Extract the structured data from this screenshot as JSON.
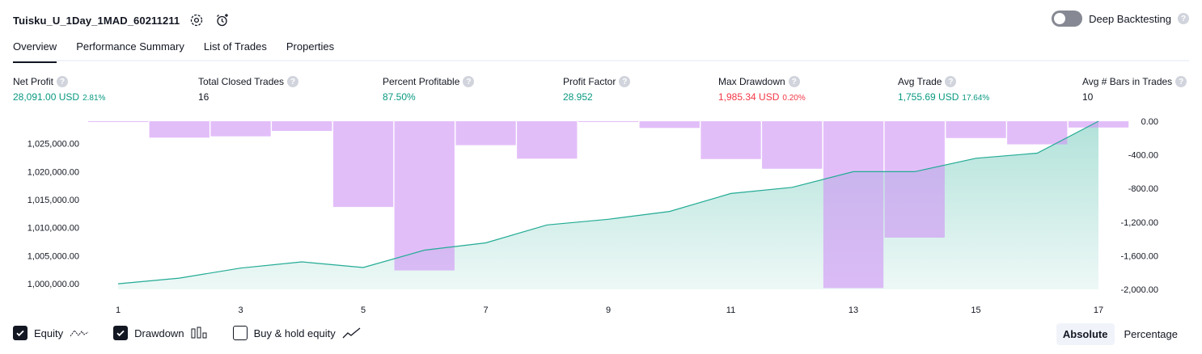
{
  "header": {
    "title": "Tuisku_U_1Day_1MAD_60211211",
    "deep_backtesting_label": "Deep Backtesting",
    "help_glyph": "?"
  },
  "tabs": [
    {
      "label": "Overview",
      "active": true
    },
    {
      "label": "Performance Summary",
      "active": false
    },
    {
      "label": "List of Trades",
      "active": false
    },
    {
      "label": "Properties",
      "active": false
    }
  ],
  "metrics": [
    {
      "label": "Net Profit",
      "value": "28,091.00 USD",
      "pct": "2.81%",
      "color": "#089981"
    },
    {
      "label": "Total Closed Trades",
      "value": "16",
      "pct": "",
      "color": "#131722"
    },
    {
      "label": "Percent Profitable",
      "value": "87.50%",
      "pct": "",
      "color": "#089981"
    },
    {
      "label": "Profit Factor",
      "value": "28.952",
      "pct": "",
      "color": "#089981"
    },
    {
      "label": "Max Drawdown",
      "value": "1,985.34 USD",
      "pct": "0.20%",
      "color": "#f23645"
    },
    {
      "label": "Avg Trade",
      "value": "1,755.69 USD",
      "pct": "17.64%",
      "color": "#089981"
    },
    {
      "label": "Avg # Bars in Trades",
      "value": "10",
      "pct": "",
      "color": "#131722"
    }
  ],
  "footer": {
    "equity_label": "Equity",
    "drawdown_label": "Drawdown",
    "buyhold_label": "Buy & hold equity",
    "absolute_label": "Absolute",
    "percentage_label": "Percentage"
  },
  "chart_data": {
    "type": "line",
    "x": [
      1,
      2,
      3,
      4,
      5,
      6,
      7,
      8,
      9,
      10,
      11,
      12,
      13,
      14,
      15,
      16,
      17
    ],
    "x_tick_labels": [
      "1",
      "3",
      "5",
      "7",
      "9",
      "11",
      "13",
      "15",
      "17"
    ],
    "y_left_range": [
      999000,
      1029000
    ],
    "y_left_tick_labels": [
      "1,000,000.00",
      "1,005,000.00",
      "1,010,000.00",
      "1,015,000.00",
      "1,020,000.00",
      "1,025,000.00"
    ],
    "y_left_ticks": [
      1000000,
      1005000,
      1010000,
      1015000,
      1020000,
      1025000
    ],
    "y_right_range": [
      -2000,
      0
    ],
    "y_right_tick_labels": [
      "0.00",
      "-400.00",
      "-800.00",
      "-1,200.00",
      "-1,600.00",
      "-2,000.00"
    ],
    "y_right_ticks": [
      0,
      -400,
      -800,
      -1200,
      -1600,
      -2000
    ],
    "series": [
      {
        "type": "area",
        "values": [
          1000000,
          1001000,
          1002800,
          1003900,
          1002900,
          1006000,
          1007300,
          1010500,
          1011500,
          1012900,
          1016100,
          1017200,
          1020000,
          1020000,
          1022400,
          1023300,
          1029000
        ],
        "color": "#22ab94"
      },
      {
        "type": "bar",
        "x": [
          1,
          2,
          3,
          4,
          5,
          6,
          7,
          8,
          9,
          10,
          11,
          12,
          13,
          14,
          15,
          16,
          17
        ],
        "values": [
          -5,
          -195,
          -180,
          -115,
          -1020,
          -1775,
          -285,
          -445,
          -8,
          -80,
          -450,
          -565,
          -1985,
          -1385,
          -200,
          -275,
          -75
        ],
        "color": "#ce93f5"
      }
    ],
    "grid": false,
    "legend": "bottom-left"
  }
}
